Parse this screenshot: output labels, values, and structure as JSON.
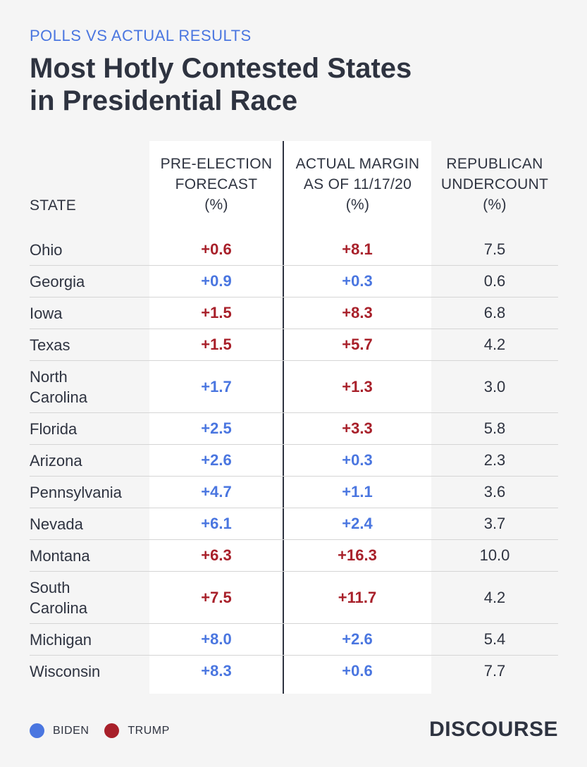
{
  "header": {
    "kicker": "POLLS VS ACTUAL RESULTS",
    "title_line1": "Most Hotly Contested States",
    "title_line2": "in Presidential Race"
  },
  "columns": {
    "state": "STATE",
    "forecast": [
      "PRE-ELECTION",
      "FORECAST",
      "(%)"
    ],
    "actual": [
      "ACTUAL MARGIN",
      "AS OF 11/17/20",
      "(%)"
    ],
    "undercount": [
      "REPUBLICAN",
      "UNDERCOUNT",
      "(%)"
    ]
  },
  "colors": {
    "biden": "#4a76e0",
    "trump": "#a8202a"
  },
  "chart_data": {
    "type": "table",
    "rows": [
      {
        "state": [
          "Ohio"
        ],
        "forecast": "+0.6",
        "forecast_party": "trump",
        "actual": "+8.1",
        "actual_party": "trump",
        "undercount": "7.5"
      },
      {
        "state": [
          "Georgia"
        ],
        "forecast": "+0.9",
        "forecast_party": "biden",
        "actual": "+0.3",
        "actual_party": "biden",
        "undercount": "0.6"
      },
      {
        "state": [
          "Iowa"
        ],
        "forecast": "+1.5",
        "forecast_party": "trump",
        "actual": "+8.3",
        "actual_party": "trump",
        "undercount": "6.8"
      },
      {
        "state": [
          "Texas"
        ],
        "forecast": "+1.5",
        "forecast_party": "trump",
        "actual": "+5.7",
        "actual_party": "trump",
        "undercount": "4.2"
      },
      {
        "state": [
          "North",
          "Carolina"
        ],
        "forecast": "+1.7",
        "forecast_party": "biden",
        "actual": "+1.3",
        "actual_party": "trump",
        "undercount": "3.0"
      },
      {
        "state": [
          "Florida"
        ],
        "forecast": "+2.5",
        "forecast_party": "biden",
        "actual": "+3.3",
        "actual_party": "trump",
        "undercount": "5.8"
      },
      {
        "state": [
          "Arizona"
        ],
        "forecast": "+2.6",
        "forecast_party": "biden",
        "actual": "+0.3",
        "actual_party": "biden",
        "undercount": "2.3"
      },
      {
        "state": [
          "Pennsylvania"
        ],
        "forecast": "+4.7",
        "forecast_party": "biden",
        "actual": "+1.1",
        "actual_party": "biden",
        "undercount": "3.6"
      },
      {
        "state": [
          "Nevada"
        ],
        "forecast": "+6.1",
        "forecast_party": "biden",
        "actual": "+2.4",
        "actual_party": "biden",
        "undercount": "3.7"
      },
      {
        "state": [
          "Montana"
        ],
        "forecast": "+6.3",
        "forecast_party": "trump",
        "actual": "+16.3",
        "actual_party": "trump",
        "undercount": "10.0"
      },
      {
        "state": [
          "South",
          "Carolina"
        ],
        "forecast": "+7.5",
        "forecast_party": "trump",
        "actual": "+11.7",
        "actual_party": "trump",
        "undercount": "4.2"
      },
      {
        "state": [
          "Michigan"
        ],
        "forecast": "+8.0",
        "forecast_party": "biden",
        "actual": "+2.6",
        "actual_party": "biden",
        "undercount": "5.4"
      },
      {
        "state": [
          "Wisconsin"
        ],
        "forecast": "+8.3",
        "forecast_party": "biden",
        "actual": "+0.6",
        "actual_party": "biden",
        "undercount": "7.7"
      }
    ]
  },
  "legend": {
    "biden": "BIDEN",
    "trump": "TRUMP"
  },
  "brand": "DISCOURSE"
}
